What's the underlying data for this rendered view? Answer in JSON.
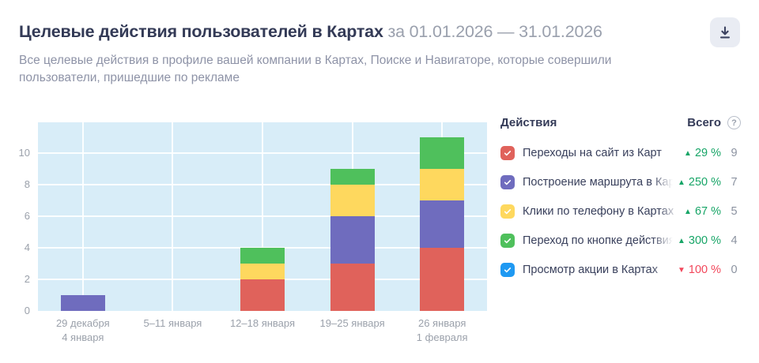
{
  "header": {
    "title": "Целевые действия пользователей в Картах",
    "period": "за 01.01.2026 — 31.01.2026",
    "subtitle": "Все целевые действия в профиле вашей компании в Картах, Поиске и Навигаторе, которые совершили пользователи, пришедшие по рекламе"
  },
  "legend": {
    "header_actions": "Действия",
    "header_total": "Всего",
    "help_icon": "?",
    "rows": [
      {
        "label": "Переходы на сайт из Карт",
        "color": "#e0625b",
        "checked": true,
        "direction": "up",
        "trend": "29 %",
        "total": "9"
      },
      {
        "label": "Построение маршрута в Картах",
        "color": "#6f6cbe",
        "checked": true,
        "direction": "up",
        "trend": "250 %",
        "total": "7"
      },
      {
        "label": "Клики по телефону в Картах",
        "color": "#fed85e",
        "checked": true,
        "direction": "up",
        "trend": "67 %",
        "total": "5"
      },
      {
        "label": "Переход по кнопке действия из Карт",
        "color": "#4fc05c",
        "checked": true,
        "direction": "up",
        "trend": "300 %",
        "total": "4"
      },
      {
        "label": "Просмотр акции в Картах",
        "color": "#1f99f2",
        "checked": true,
        "direction": "down",
        "trend": "100 %",
        "total": "0"
      }
    ]
  },
  "chart_data": {
    "type": "bar",
    "stacked": true,
    "title": "Целевые действия пользователей в Картах за 01.01.2026 — 31.01.2026",
    "categories": [
      [
        "29 декабря",
        "4 января"
      ],
      [
        "5–11 января"
      ],
      [
        "12–18 января"
      ],
      [
        "19–25 января"
      ],
      [
        "26 января",
        "1 февраля"
      ]
    ],
    "series": [
      {
        "name": "Переходы на сайт из Карт",
        "color": "#e0625b",
        "values": [
          0,
          0,
          2,
          3,
          4
        ]
      },
      {
        "name": "Построение маршрута в Картах",
        "color": "#6f6cbe",
        "values": [
          1,
          0,
          0,
          3,
          3
        ]
      },
      {
        "name": "Клики по телефону в Картах",
        "color": "#fed85e",
        "values": [
          0,
          0,
          1,
          2,
          2
        ]
      },
      {
        "name": "Переход по кнопке действия из Карт",
        "color": "#4fc05c",
        "values": [
          0,
          0,
          1,
          1,
          2
        ]
      },
      {
        "name": "Просмотр акции в Картах",
        "color": "#1f99f2",
        "values": [
          0,
          0,
          0,
          0,
          0
        ]
      }
    ],
    "yticks": [
      0,
      2,
      4,
      6,
      8,
      10
    ],
    "ylim": [
      0,
      11.95
    ],
    "grid": true,
    "legend_position": "right",
    "plot_bg": "#d8edf8"
  }
}
